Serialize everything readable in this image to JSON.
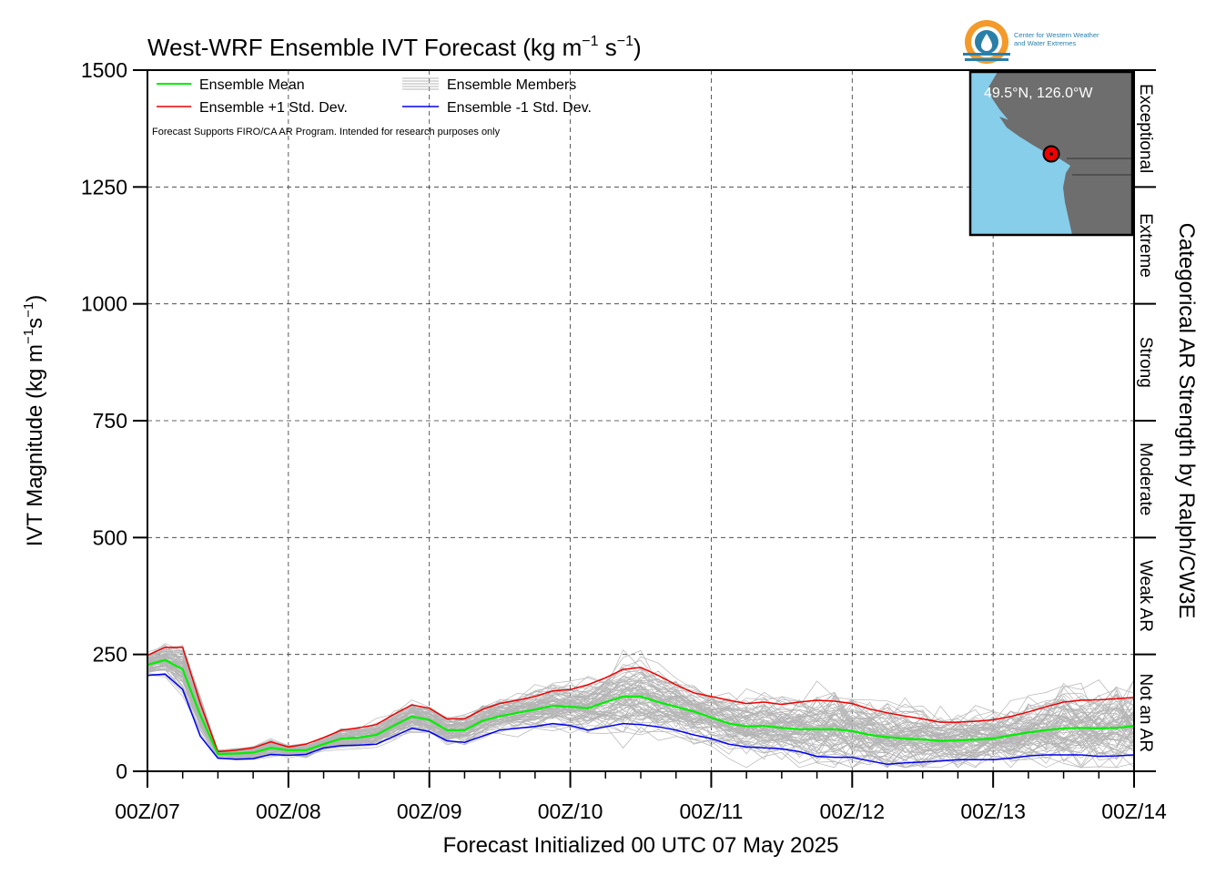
{
  "title_main": "West-WRF Ensemble IVT Forecast (kg m",
  "title_exp1": "−1",
  "title_mid": " s",
  "title_exp2": "−1",
  "title_end": ")",
  "logo": {
    "line1": "Center for Western Weather",
    "line2": "and Water Extremes"
  },
  "disclaimer": "Forecast Supports FIRO/CA AR Program. Intended for research purposes only",
  "ylabel": {
    "main": "IVT Magnitude (kg m",
    "exp1": "−1",
    "mid": "s",
    "exp2": "−1",
    "end": ")"
  },
  "xlabel": "Forecast Initialized 00 UTC 07 May 2025",
  "right_axis_label": "Categorical AR Strength by Ralph/CW3E",
  "categories": [
    "Not an AR",
    "Weak AR",
    "Moderate",
    "Strong",
    "Extreme",
    "Exceptional"
  ],
  "inset": {
    "location": "49.5°N, 126.0°W",
    "ocean_color": "#87ceeb",
    "land_color": "#6e6e6e"
  },
  "colors": {
    "mean": "#00ee00",
    "plus": "#ee0000",
    "minus": "#0000ee",
    "members": "#b4b4b4",
    "logo_orange": "#f39a2b",
    "logo_blue": "#2a7fa8"
  },
  "chart_data": {
    "type": "line",
    "title": "West-WRF Ensemble IVT Forecast (kg m−1 s−1)",
    "xlabel": "Forecast Initialized 00 UTC 07 May 2025",
    "ylabel": "IVT Magnitude (kg m−1 s−1)",
    "ylim": [
      0,
      1500
    ],
    "xlim_hours": [
      0,
      168
    ],
    "x_unit": "forecast hour (from 00 UTC 07 May 2025)",
    "grid": true,
    "legend_position": "top-left",
    "yticks": [
      0,
      250,
      500,
      750,
      1000,
      1250,
      1500
    ],
    "xticks": [
      {
        "hour": 0,
        "label": "00Z/07"
      },
      {
        "hour": 24,
        "label": "00Z/08"
      },
      {
        "hour": 48,
        "label": "00Z/09"
      },
      {
        "hour": 72,
        "label": "00Z/10"
      },
      {
        "hour": 96,
        "label": "00Z/11"
      },
      {
        "hour": 120,
        "label": "00Z/12"
      },
      {
        "hour": 144,
        "label": "00Z/13"
      },
      {
        "hour": 168,
        "label": "00Z/14"
      }
    ],
    "category_thresholds": [
      0,
      250,
      500,
      750,
      1000,
      1250,
      1500
    ],
    "x": [
      0,
      3,
      6,
      9,
      12,
      15,
      18,
      21,
      24,
      27,
      30,
      33,
      36,
      39,
      42,
      45,
      48,
      51,
      54,
      57,
      60,
      63,
      66,
      69,
      72,
      75,
      78,
      81,
      84,
      87,
      90,
      93,
      96,
      99,
      102,
      105,
      108,
      111,
      114,
      117,
      120,
      123,
      126,
      129,
      132,
      135,
      138,
      141,
      144,
      147,
      150,
      153,
      156,
      159,
      162,
      165,
      168
    ],
    "series": [
      {
        "name": "Ensemble Mean",
        "values": [
          228,
          238,
          218,
          120,
          37,
          38,
          40,
          50,
          45,
          45,
          58,
          70,
          72,
          78,
          98,
          117,
          110,
          88,
          88,
          108,
          118,
          125,
          132,
          140,
          138,
          135,
          148,
          160,
          160,
          148,
          138,
          128,
          115,
          102,
          96,
          97,
          93,
          90,
          90,
          90,
          86,
          78,
          73,
          70,
          68,
          65,
          66,
          68,
          70,
          77,
          83,
          88,
          92,
          93,
          92,
          93,
          97
        ]
      },
      {
        "name": "Ensemble +1 Std. Dev.",
        "values": [
          248,
          265,
          265,
          145,
          42,
          45,
          50,
          63,
          52,
          58,
          72,
          88,
          93,
          100,
          122,
          142,
          135,
          112,
          112,
          132,
          145,
          152,
          160,
          172,
          175,
          185,
          200,
          218,
          222,
          205,
          185,
          168,
          160,
          152,
          145,
          148,
          143,
          148,
          152,
          150,
          145,
          133,
          125,
          118,
          112,
          105,
          105,
          107,
          110,
          117,
          127,
          138,
          148,
          152,
          153,
          155,
          158
        ]
      },
      {
        "name": "Ensemble -1 Std. Dev.",
        "values": [
          205,
          208,
          175,
          75,
          28,
          26,
          27,
          36,
          34,
          36,
          50,
          55,
          56,
          58,
          75,
          92,
          85,
          65,
          62,
          75,
          88,
          92,
          96,
          102,
          98,
          88,
          95,
          102,
          100,
          95,
          88,
          78,
          70,
          58,
          52,
          50,
          48,
          42,
          32,
          30,
          30,
          22,
          15,
          18,
          20,
          22,
          25,
          25,
          25,
          28,
          33,
          35,
          35,
          35,
          32,
          33,
          35
        ]
      }
    ]
  }
}
